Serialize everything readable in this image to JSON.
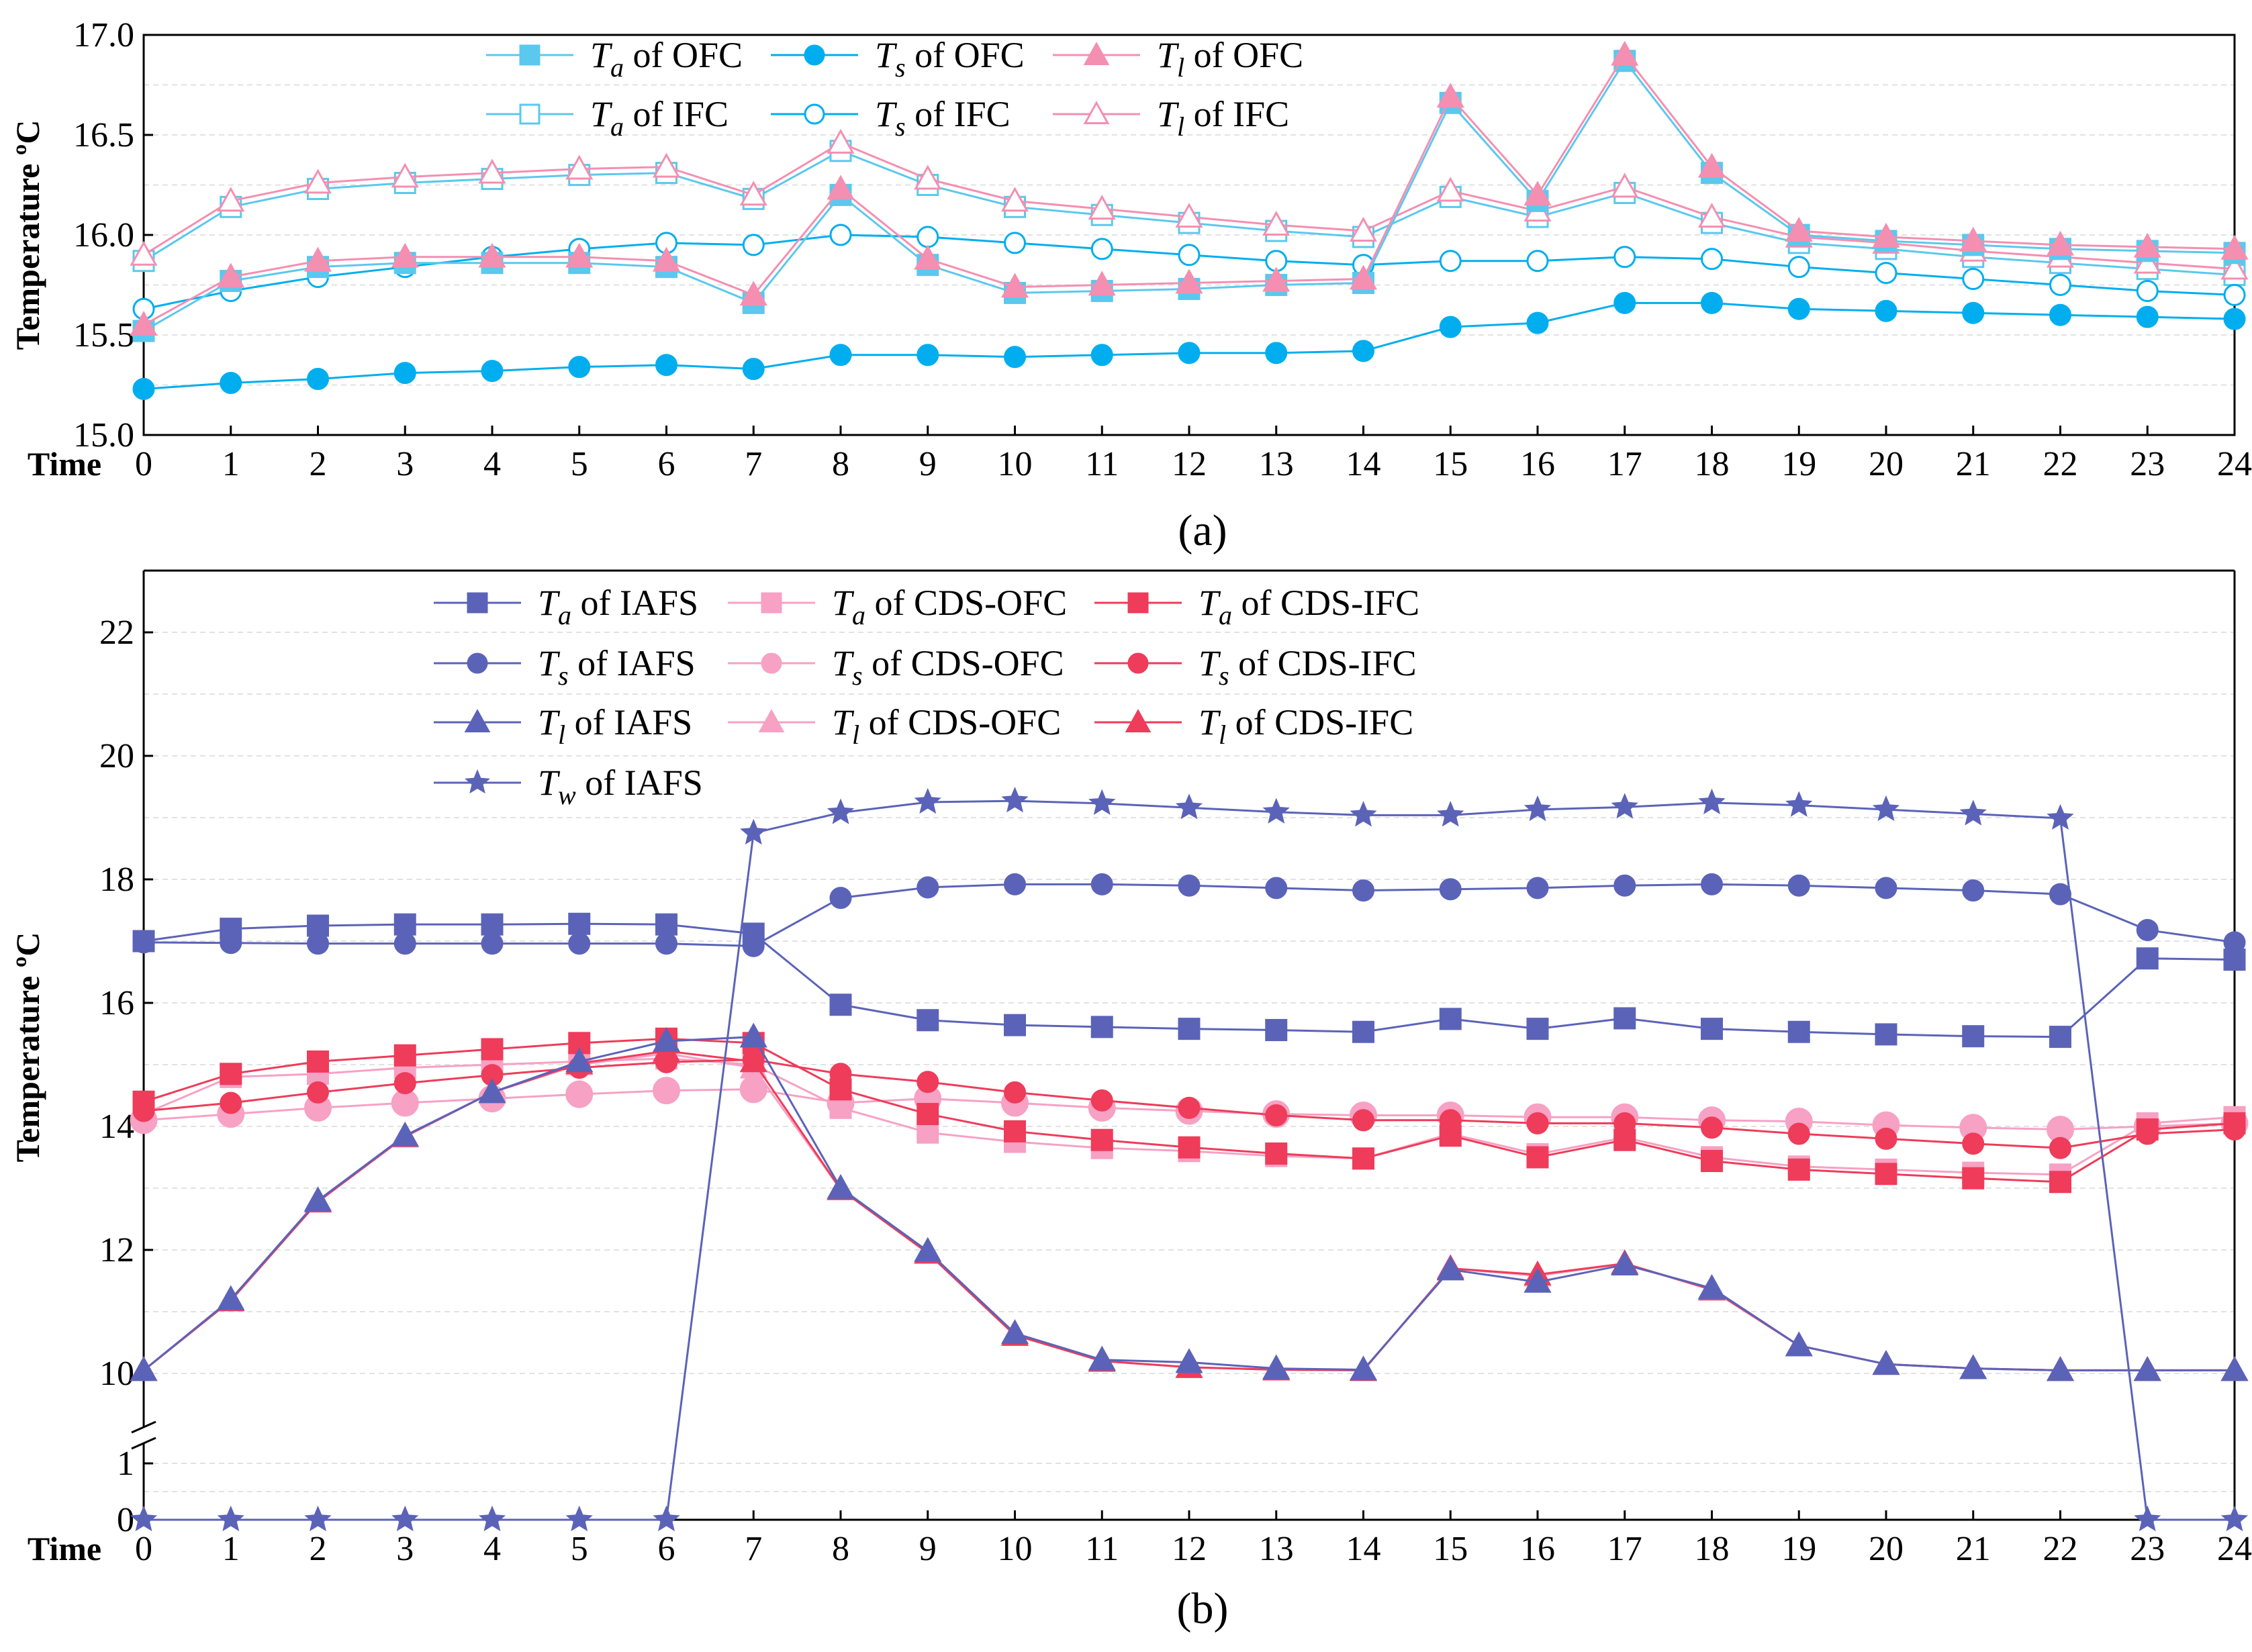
{
  "chart_data": [
    {
      "type": "line",
      "panel_label": "(a)",
      "xlabel": "Time",
      "ylabel": "Temperature ºC",
      "x": [
        0,
        1,
        2,
        3,
        4,
        5,
        6,
        7,
        8,
        9,
        10,
        11,
        12,
        13,
        14,
        15,
        16,
        17,
        18,
        19,
        20,
        21,
        22,
        23,
        24
      ],
      "xlim": [
        0,
        24
      ],
      "ylim": [
        15.0,
        17.0
      ],
      "yticks": [
        15.0,
        15.5,
        16.0,
        16.5,
        17.0
      ],
      "ytick_labels": [
        "15.0",
        "15.5",
        "16.0",
        "16.5",
        "17.0"
      ],
      "grid": true,
      "legend_position": "top-left",
      "series": [
        {
          "symbol": "T",
          "sub": "a",
          "suffix": " of OFC",
          "color": "#5BC8EE",
          "marker": "square",
          "filled": true,
          "values": [
            15.52,
            15.77,
            15.84,
            15.86,
            15.86,
            15.86,
            15.84,
            15.66,
            16.2,
            15.85,
            15.71,
            15.72,
            15.73,
            15.75,
            15.76,
            16.66,
            16.17,
            16.87,
            16.31,
            16.0,
            15.97,
            15.95,
            15.93,
            15.92,
            15.91
          ]
        },
        {
          "symbol": "T",
          "sub": "s",
          "suffix": " of OFC",
          "color": "#00AEEF",
          "marker": "circle",
          "filled": true,
          "values": [
            15.23,
            15.26,
            15.28,
            15.31,
            15.32,
            15.34,
            15.35,
            15.33,
            15.4,
            15.4,
            15.39,
            15.4,
            15.41,
            15.41,
            15.42,
            15.54,
            15.56,
            15.66,
            15.66,
            15.63,
            15.62,
            15.61,
            15.6,
            15.59,
            15.58
          ]
        },
        {
          "symbol": "T",
          "sub": "l",
          "suffix": " of OFC",
          "color": "#F48FB1",
          "marker": "triangle",
          "filled": true,
          "values": [
            15.55,
            15.79,
            15.87,
            15.89,
            15.89,
            15.89,
            15.87,
            15.7,
            16.23,
            15.88,
            15.74,
            15.75,
            15.76,
            15.77,
            15.78,
            16.69,
            16.2,
            16.9,
            16.34,
            16.02,
            15.99,
            15.97,
            15.95,
            15.94,
            15.93
          ]
        },
        {
          "symbol": "T",
          "sub": "a",
          "suffix": " of IFC",
          "color": "#5BC8EE",
          "marker": "square",
          "filled": false,
          "values": [
            15.87,
            16.14,
            16.23,
            16.26,
            16.28,
            16.3,
            16.31,
            16.18,
            16.42,
            16.25,
            16.14,
            16.1,
            16.06,
            16.02,
            15.99,
            16.19,
            16.09,
            16.21,
            16.06,
            15.96,
            15.93,
            15.89,
            15.86,
            15.83,
            15.8
          ]
        },
        {
          "symbol": "T",
          "sub": "s",
          "suffix": " of IFC",
          "color": "#00AEEF",
          "marker": "circle",
          "filled": false,
          "values": [
            15.63,
            15.72,
            15.79,
            15.84,
            15.89,
            15.93,
            15.96,
            15.95,
            16.0,
            15.99,
            15.96,
            15.93,
            15.9,
            15.87,
            15.85,
            15.87,
            15.87,
            15.89,
            15.88,
            15.84,
            15.81,
            15.78,
            15.75,
            15.72,
            15.7
          ]
        },
        {
          "symbol": "T",
          "sub": "l",
          "suffix": " of IFC",
          "color": "#F48FB1",
          "marker": "triangle",
          "filled": false,
          "values": [
            15.9,
            16.17,
            16.26,
            16.29,
            16.31,
            16.33,
            16.34,
            16.2,
            16.46,
            16.28,
            16.17,
            16.13,
            16.09,
            16.05,
            16.02,
            16.22,
            16.12,
            16.24,
            16.09,
            15.99,
            15.96,
            15.92,
            15.89,
            15.86,
            15.83
          ]
        }
      ]
    },
    {
      "type": "line",
      "panel_label": "(b)",
      "xlabel": "Time",
      "ylabel": "Temperature ºC",
      "x": [
        0,
        1,
        2,
        3,
        4,
        5,
        6,
        7,
        8,
        9,
        10,
        11,
        12,
        13,
        14,
        15,
        16,
        17,
        18,
        19,
        20,
        21,
        22,
        23,
        24
      ],
      "xlim": [
        0,
        24
      ],
      "ylim": [
        0,
        23
      ],
      "axis_break": {
        "lower": [
          0,
          1.5
        ],
        "upper": [
          9,
          23
        ]
      },
      "yticks": [
        0,
        1,
        10,
        12,
        14,
        16,
        18,
        20,
        22
      ],
      "ytick_labels": [
        "0",
        "1",
        "10",
        "12",
        "14",
        "16",
        "18",
        "20",
        "22"
      ],
      "grid": true,
      "legend_position": "top-left",
      "series": [
        {
          "symbol": "T",
          "sub": "a",
          "suffix": " of IAFS",
          "color": "#5B63B8",
          "marker": "square",
          "filled": true,
          "values": [
            17.0,
            17.2,
            17.25,
            17.27,
            17.27,
            17.28,
            17.27,
            17.12,
            15.97,
            15.72,
            15.64,
            15.61,
            15.58,
            15.56,
            15.53,
            15.74,
            15.58,
            15.75,
            15.58,
            15.53,
            15.49,
            15.46,
            15.45,
            16.72,
            16.7
          ]
        },
        {
          "symbol": "T",
          "sub": "a",
          "suffix": " of CDS-OFC",
          "color": "#F7A1C4",
          "marker": "square",
          "filled": true,
          "values": [
            14.2,
            14.8,
            14.85,
            14.95,
            15.0,
            15.05,
            15.1,
            15.0,
            14.3,
            13.9,
            13.75,
            13.65,
            13.6,
            13.52,
            13.48,
            13.88,
            13.55,
            13.82,
            13.5,
            13.35,
            13.3,
            13.25,
            13.22,
            14.05,
            14.15
          ]
        },
        {
          "symbol": "T",
          "sub": "a",
          "suffix": " of CDS-IFC",
          "color": "#EE3C5A",
          "marker": "square",
          "filled": true,
          "values": [
            14.4,
            14.85,
            15.05,
            15.15,
            15.25,
            15.35,
            15.42,
            15.35,
            14.6,
            14.2,
            13.92,
            13.78,
            13.66,
            13.56,
            13.48,
            13.85,
            13.5,
            13.78,
            13.44,
            13.3,
            13.23,
            13.16,
            13.1,
            13.95,
            14.05
          ]
        },
        {
          "symbol": "T",
          "sub": "s",
          "suffix": " of IAFS",
          "color": "#5B63B8",
          "marker": "circle",
          "filled": true,
          "values": [
            16.98,
            16.97,
            16.96,
            16.96,
            16.96,
            16.96,
            16.96,
            16.92,
            17.7,
            17.87,
            17.92,
            17.92,
            17.9,
            17.86,
            17.82,
            17.84,
            17.86,
            17.9,
            17.92,
            17.9,
            17.86,
            17.82,
            17.76,
            17.18,
            16.98
          ]
        },
        {
          "symbol": "T",
          "sub": "s",
          "suffix": " of CDS-OFC",
          "color": "#F7A1C4",
          "marker": "circle",
          "filled": true,
          "values": [
            14.1,
            14.2,
            14.3,
            14.38,
            14.45,
            14.52,
            14.58,
            14.6,
            14.38,
            14.45,
            14.38,
            14.3,
            14.25,
            14.2,
            14.18,
            14.18,
            14.15,
            14.15,
            14.1,
            14.08,
            14.02,
            13.98,
            13.95,
            14.0,
            14.05
          ]
        },
        {
          "symbol": "T",
          "sub": "s",
          "suffix": " of CDS-IFC",
          "color": "#EE3C5A",
          "marker": "circle",
          "filled": true,
          "values": [
            14.25,
            14.38,
            14.55,
            14.7,
            14.83,
            14.95,
            15.04,
            15.08,
            14.85,
            14.72,
            14.55,
            14.42,
            14.3,
            14.18,
            14.1,
            14.1,
            14.05,
            14.05,
            13.98,
            13.88,
            13.8,
            13.72,
            13.65,
            13.88,
            13.95
          ]
        },
        {
          "symbol": "T",
          "sub": "l",
          "suffix": " of IAFS",
          "color": "#5B63B8",
          "marker": "triangle",
          "filled": true,
          "values": [
            10.05,
            11.2,
            12.8,
            13.85,
            14.55,
            15.05,
            15.38,
            15.45,
            13.0,
            11.98,
            10.65,
            10.22,
            10.18,
            10.08,
            10.06,
            11.68,
            11.48,
            11.76,
            11.38,
            10.45,
            10.15,
            10.08,
            10.05,
            10.05,
            10.05
          ]
        },
        {
          "symbol": "T",
          "sub": "l",
          "suffix": " of CDS-OFC",
          "color": "#F7A1C4",
          "marker": "triangle",
          "filled": true,
          "values": [
            10.05,
            11.18,
            12.78,
            13.83,
            14.55,
            15.0,
            15.18,
            14.95,
            12.98,
            11.95,
            10.62,
            10.2,
            10.1,
            10.06,
            10.05,
            11.7,
            11.58,
            11.78,
            11.35,
            10.45,
            10.15,
            10.08,
            10.05,
            10.05,
            10.05
          ]
        },
        {
          "symbol": "T",
          "sub": "l",
          "suffix": " of CDS-IFC",
          "color": "#EE3C5A",
          "marker": "triangle",
          "filled": true,
          "values": [
            10.05,
            11.18,
            12.78,
            13.84,
            14.55,
            15.02,
            15.22,
            15.05,
            12.98,
            11.95,
            10.62,
            10.2,
            10.1,
            10.06,
            10.05,
            11.7,
            11.6,
            11.78,
            11.36,
            10.45,
            10.15,
            10.08,
            10.05,
            10.05,
            10.05
          ]
        },
        {
          "symbol": "T",
          "sub": "w",
          "suffix": " of IAFS",
          "color": "#5B63B8",
          "marker": "star",
          "filled": true,
          "values": [
            0,
            0,
            0,
            0,
            0,
            0,
            0,
            18.75,
            19.08,
            19.25,
            19.27,
            19.23,
            19.16,
            19.09,
            19.04,
            19.04,
            19.13,
            19.17,
            19.24,
            19.2,
            19.13,
            19.06,
            18.99,
            0,
            0
          ]
        }
      ]
    }
  ]
}
